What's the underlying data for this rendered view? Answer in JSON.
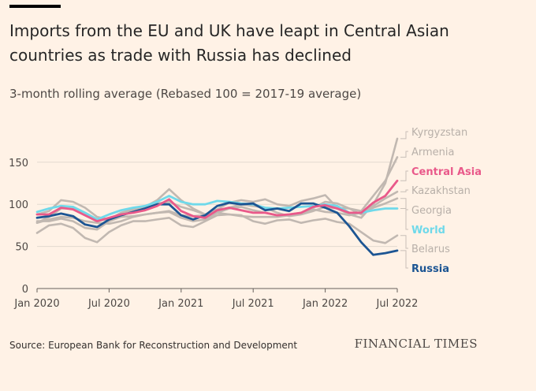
{
  "header": {
    "title": "Imports from the EU and UK have leapt in Central Asian countries as trade with Russia has declined",
    "subtitle": "3-month rolling average (Rebased 100 = 2017-19 average)"
  },
  "footer": {
    "source": "Source: European Bank for Reconstruction and Development",
    "logo": "FINANCIAL TIMES"
  },
  "colors": {
    "background": "#fff2e6",
    "grid": "#e3d9cf",
    "grey_series": "#c1b8b1",
    "central_asia": "#e9598a",
    "world": "#6fd9ea",
    "russia": "#1c5593",
    "label_grey": "#b8b0a9"
  },
  "chart_data": {
    "type": "line",
    "title": "Imports from the EU and UK have leapt in Central Asian countries as trade with Russia has declined",
    "ylabel": "3-month rolling average (Rebased 100 = 2017-19 average)",
    "ylim": [
      0,
      180
    ],
    "yticks": [
      0,
      50,
      100,
      150
    ],
    "x_start": "Jan 2020",
    "x_end": "Jul 2022",
    "x_ticks": [
      {
        "index": 0,
        "label": "Jan 2020"
      },
      {
        "index": 6,
        "label": "Jul 2020"
      },
      {
        "index": 12,
        "label": "Jan 2021"
      },
      {
        "index": 18,
        "label": "Jul 2021"
      },
      {
        "index": 24,
        "label": "Jan 2022"
      },
      {
        "index": 30,
        "label": "Jul 2022"
      }
    ],
    "series": [
      {
        "name": "Kyrgyzstan",
        "group": "grey",
        "values": [
          78,
          85,
          95,
          95,
          87,
          80,
          83,
          88,
          92,
          96,
          101,
          103,
          97,
          93,
          88,
          92,
          96,
          100,
          98,
          96,
          90,
          86,
          88,
          92,
          97,
          95,
          88,
          84,
          100,
          125,
          178
        ]
      },
      {
        "name": "Armenia",
        "group": "grey",
        "values": [
          88,
          92,
          105,
          103,
          96,
          85,
          82,
          90,
          94,
          97,
          105,
          118,
          105,
          95,
          88,
          94,
          102,
          105,
          103,
          106,
          100,
          98,
          104,
          107,
          111,
          96,
          95,
          92,
          110,
          128,
          156
        ]
      },
      {
        "name": "Kazakhstan",
        "group": "grey",
        "values": [
          78,
          82,
          85,
          84,
          80,
          78,
          77,
          80,
          85,
          88,
          90,
          91,
          84,
          80,
          82,
          90,
          95,
          97,
          93,
          90,
          87,
          88,
          90,
          96,
          103,
          101,
          95,
          88,
          98,
          107,
          115
        ]
      },
      {
        "name": "Georgia",
        "group": "grey",
        "values": [
          80,
          80,
          83,
          80,
          72,
          70,
          80,
          85,
          86,
          88,
          90,
          92,
          87,
          86,
          87,
          90,
          88,
          86,
          85,
          85,
          85,
          87,
          90,
          94,
          91,
          90,
          87,
          90,
          96,
          101,
          107
        ]
      },
      {
        "name": "Belarus",
        "group": "grey",
        "values": [
          66,
          75,
          77,
          72,
          60,
          55,
          67,
          75,
          80,
          80,
          82,
          84,
          75,
          73,
          80,
          87,
          88,
          87,
          80,
          77,
          81,
          82,
          78,
          81,
          83,
          79,
          77,
          67,
          57,
          54,
          63
        ]
      },
      {
        "name": "Central Asia",
        "group": "highlight",
        "color": "#e9598a",
        "values": [
          88,
          88,
          96,
          94,
          87,
          80,
          84,
          88,
          90,
          93,
          98,
          106,
          92,
          86,
          84,
          93,
          96,
          93,
          90,
          90,
          87,
          88,
          90,
          97,
          99,
          95,
          90,
          90,
          102,
          110,
          128
        ]
      },
      {
        "name": "World",
        "group": "highlight",
        "color": "#6fd9ea",
        "values": [
          91,
          95,
          98,
          97,
          90,
          82,
          88,
          93,
          96,
          98,
          103,
          110,
          103,
          100,
          100,
          104,
          103,
          101,
          100,
          96,
          95,
          96,
          97,
          98,
          100,
          98,
          90,
          90,
          93,
          95,
          95
        ]
      },
      {
        "name": "Russia",
        "group": "highlight",
        "color": "#1c5593",
        "values": [
          84,
          86,
          89,
          86,
          76,
          73,
          82,
          87,
          91,
          95,
          100,
          100,
          87,
          82,
          87,
          98,
          102,
          100,
          101,
          93,
          95,
          92,
          101,
          101,
          96,
          90,
          74,
          55,
          40,
          42,
          45
        ]
      }
    ],
    "legend": [
      {
        "name": "Kyrgyzstan",
        "color": "#b8b0a9",
        "bold": false
      },
      {
        "name": "Armenia",
        "color": "#b8b0a9",
        "bold": false
      },
      {
        "name": "Central Asia",
        "color": "#e9598a",
        "bold": true
      },
      {
        "name": "Kazakhstan",
        "color": "#b8b0a9",
        "bold": false
      },
      {
        "name": "Georgia",
        "color": "#b8b0a9",
        "bold": false
      },
      {
        "name": "World",
        "color": "#6fd9ea",
        "bold": true
      },
      {
        "name": "Belarus",
        "color": "#b8b0a9",
        "bold": false
      },
      {
        "name": "Russia",
        "color": "#1c5593",
        "bold": true
      }
    ],
    "legend_position": "right"
  }
}
